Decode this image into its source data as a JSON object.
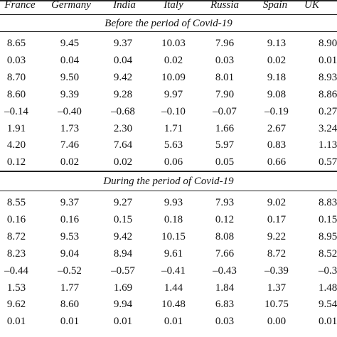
{
  "columns": [
    "France",
    "Germany",
    "India",
    "Italy",
    "Russia",
    "Spain",
    "UK"
  ],
  "sections": [
    {
      "title": "Before the period of Covid-19",
      "rows": [
        [
          "8.65",
          "9.45",
          "9.37",
          "10.03",
          "7.96",
          "9.13",
          "8.90"
        ],
        [
          "0.03",
          "0.04",
          "0.04",
          "0.02",
          "0.03",
          "0.02",
          "0.01"
        ],
        [
          "8.70",
          "9.50",
          "9.42",
          "10.09",
          "8.01",
          "9.18",
          "8.93"
        ],
        [
          "8.60",
          "9.39",
          "9.28",
          "9.97",
          "7.90",
          "9.08",
          "8.86"
        ],
        [
          "–0.14",
          "–0.40",
          "–0.68",
          "–0.10",
          "–0.07",
          "–0.19",
          "0.27"
        ],
        [
          "1.91",
          "1.73",
          "2.30",
          "1.71",
          "1.66",
          "2.67",
          "3.24"
        ],
        [
          "4.20",
          "7.46",
          "7.64",
          "5.63",
          "5.97",
          "0.83",
          "1.13"
        ],
        [
          "0.12",
          "0.02",
          "0.02",
          "0.06",
          "0.05",
          "0.66",
          "0.57"
        ]
      ]
    },
    {
      "title": "During the period of Covid-19",
      "rows": [
        [
          "8.55",
          "9.37",
          "9.27",
          "9.93",
          "7.93",
          "9.02",
          "8.83"
        ],
        [
          "0.16",
          "0.16",
          "0.15",
          "0.18",
          "0.12",
          "0.17",
          "0.15"
        ],
        [
          "8.72",
          "9.53",
          "9.42",
          "10.15",
          "8.08",
          "9.22",
          "8.95"
        ],
        [
          "8.23",
          "9.04",
          "8.94",
          "9.61",
          "7.66",
          "8.72",
          "8.52"
        ],
        [
          "–0.44",
          "–0.52",
          "–0.57",
          "–0.41",
          "–0.43",
          "–0.39",
          "–0.38"
        ],
        [
          "1.53",
          "1.77",
          "1.69",
          "1.44",
          "1.84",
          "1.37",
          "1.48"
        ],
        [
          "9.62",
          "8.60",
          "9.94",
          "10.48",
          "6.83",
          "10.75",
          "9.54"
        ],
        [
          "0.01",
          "0.01",
          "0.01",
          "0.01",
          "0.03",
          "0.00",
          "0.01"
        ]
      ]
    }
  ]
}
